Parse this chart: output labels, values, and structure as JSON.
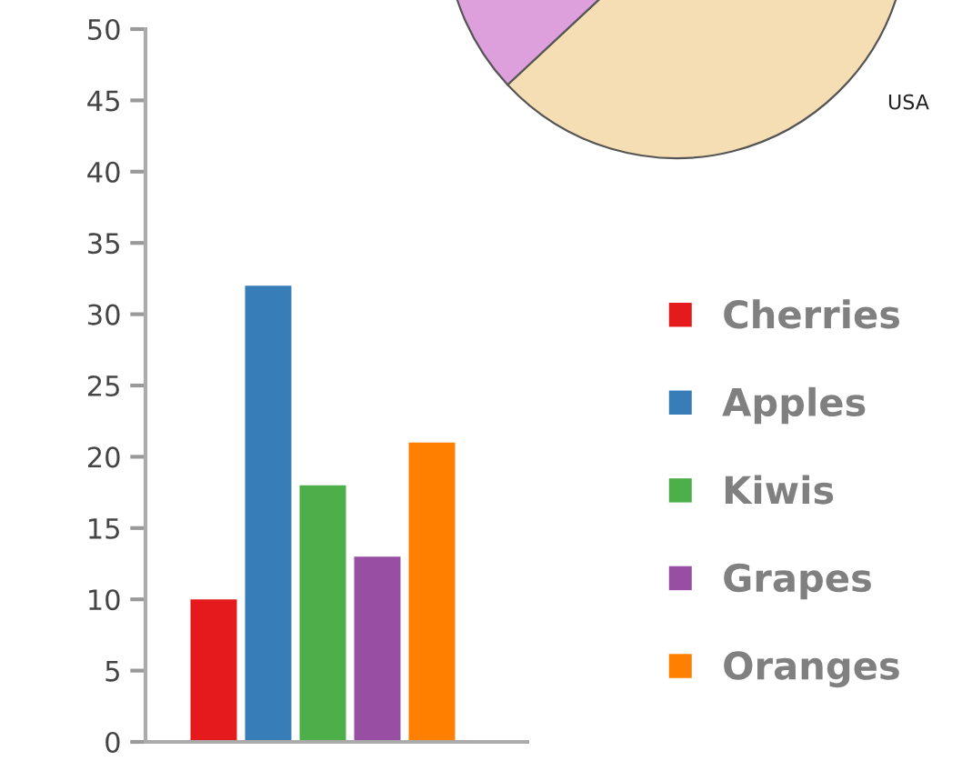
{
  "chart_data": [
    {
      "type": "bar",
      "categories": [
        null,
        null,
        null,
        null,
        null
      ],
      "series": [
        {
          "name": "Cherries",
          "color": "#e41a1c",
          "values": [
            10,
            null,
            null,
            null,
            null
          ]
        },
        {
          "name": "Apples",
          "color": "#377eb8",
          "values": [
            null,
            32,
            null,
            null,
            null
          ]
        },
        {
          "name": "Kiwis",
          "color": "#4daf4a",
          "values": [
            null,
            null,
            18,
            null,
            null
          ]
        },
        {
          "name": "Grapes",
          "color": "#984ea3",
          "values": [
            null,
            null,
            null,
            13,
            null
          ]
        },
        {
          "name": "Oranges",
          "color": "#ff7f00",
          "values": [
            null,
            null,
            null,
            null,
            21
          ]
        }
      ],
      "stacked": true,
      "ylim": [
        0,
        50
      ],
      "yticks": [
        0,
        5,
        10,
        15,
        20,
        25,
        30,
        35,
        40,
        45,
        50
      ],
      "tick_labels": "y",
      "legend": "right",
      "grid": false
    },
    {
      "type": "other",
      "annotations": [
        "USA"
      ]
    }
  ]
}
